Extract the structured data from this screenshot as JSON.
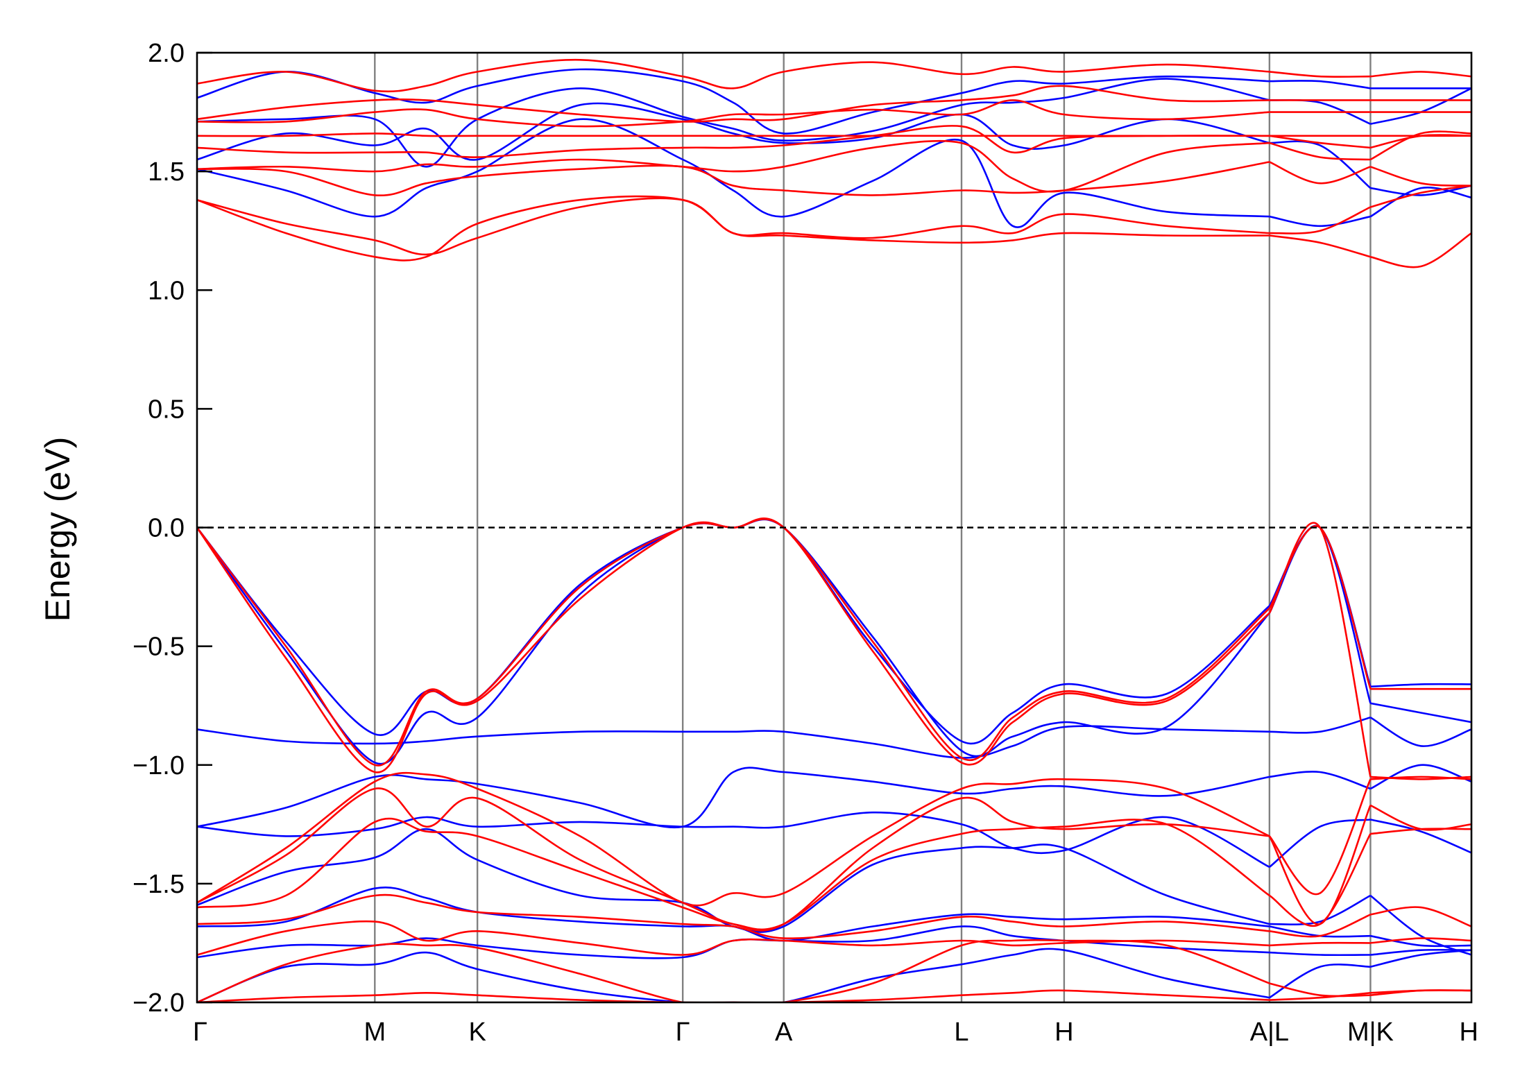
{
  "chart_data": {
    "type": "line",
    "title": "",
    "xlabel": "",
    "ylabel": "Energy (eV)",
    "ylim": [
      -2.0,
      2.0
    ],
    "yticks": [
      "2.0",
      "1.5",
      "1.0",
      "0.5",
      "0.0",
      "−0.5",
      "−1.0",
      "−1.5",
      "−2.0"
    ],
    "ytick_values": [
      2.0,
      1.5,
      1.0,
      0.5,
      0.0,
      -0.5,
      -1.0,
      -1.5,
      -2.0
    ],
    "grid": false,
    "legend": "none",
    "fermi_level": 0.0,
    "kpath": {
      "ticks": [
        {
          "label": "Γ",
          "x": 0.0
        },
        {
          "label": "M",
          "x": 1.0
        },
        {
          "label": "K",
          "x": 1.577
        },
        {
          "label": "Γ",
          "x": 2.732
        },
        {
          "label": "A",
          "x": 3.3
        },
        {
          "label": "L",
          "x": 4.3
        },
        {
          "label": "H",
          "x": 4.877
        },
        {
          "label": "A|L",
          "x": 6.032
        },
        {
          "label": "M|K",
          "x": 6.6
        },
        {
          "label": "H",
          "x": 7.168
        }
      ],
      "breaks": [
        6.032,
        6.6
      ],
      "xlim": [
        0.0,
        7.168
      ]
    },
    "colors": {
      "spin_up": "#0000ff",
      "spin_down": "#ff0000",
      "kpath_lines": "#808080",
      "fermi": "#000000"
    },
    "series": [
      {
        "spin": "up",
        "y": [
          1.51,
          1.42,
          1.31,
          1.43,
          1.5,
          1.72,
          1.55,
          1.42,
          1.31,
          1.46,
          1.63,
          1.27,
          1.41,
          1.33,
          1.31,
          1.27,
          1.31,
          1.43,
          1.39
        ]
      },
      {
        "spin": "up",
        "y": [
          1.55,
          1.66,
          1.61,
          1.68,
          1.55,
          1.78,
          1.72,
          1.66,
          1.62,
          1.64,
          1.74,
          1.61,
          1.61,
          1.72,
          1.62,
          1.61,
          1.43,
          1.4,
          1.44
        ]
      },
      {
        "spin": "up",
        "y": [
          1.71,
          1.72,
          1.72,
          1.52,
          1.72,
          1.85,
          1.73,
          1.68,
          1.63,
          1.67,
          1.78,
          1.79,
          1.81,
          1.89,
          1.8,
          1.79,
          1.7,
          1.75,
          1.85
        ]
      },
      {
        "spin": "up",
        "y": [
          1.81,
          1.92,
          1.83,
          1.79,
          1.86,
          1.93,
          1.88,
          1.79,
          1.66,
          1.75,
          1.83,
          1.88,
          1.87,
          1.9,
          1.88,
          1.88,
          1.85,
          1.85,
          1.85
        ]
      },
      {
        "spin": "up",
        "y": [
          0.0,
          -0.48,
          -0.87,
          -0.69,
          -0.72,
          -0.24,
          0.0,
          0.0,
          0.0,
          -0.5,
          -0.9,
          -0.78,
          -0.66,
          -0.7,
          -0.33,
          0.0,
          -0.67,
          -0.66,
          -0.66
        ]
      },
      {
        "spin": "up",
        "y": [
          0.0,
          -0.52,
          -0.99,
          -0.78,
          -0.8,
          -0.28,
          0.0,
          0.0,
          0.0,
          -0.46,
          -0.94,
          -0.88,
          -0.82,
          -0.84,
          -0.36,
          0.0,
          -0.74,
          -0.78,
          -0.82
        ]
      },
      {
        "spin": "up",
        "y": [
          -0.85,
          -0.9,
          -0.91,
          -0.9,
          -0.88,
          -0.86,
          -0.86,
          -0.86,
          -0.86,
          -0.91,
          -0.97,
          -0.92,
          -0.84,
          -0.85,
          -0.86,
          -0.86,
          -0.8,
          -0.92,
          -0.85
        ]
      },
      {
        "spin": "up",
        "y": [
          -1.26,
          -1.18,
          -1.05,
          -1.06,
          -1.08,
          -1.16,
          -1.26,
          -1.03,
          -1.03,
          -1.07,
          -1.12,
          -1.1,
          -1.09,
          -1.13,
          -1.05,
          -1.03,
          -1.1,
          -1.0,
          -1.07
        ]
      },
      {
        "spin": "up",
        "y": [
          -1.26,
          -1.3,
          -1.27,
          -1.22,
          -1.26,
          -1.24,
          -1.26,
          -1.26,
          -1.26,
          -1.2,
          -1.25,
          -1.35,
          -1.36,
          -1.22,
          -1.43,
          -1.26,
          -1.23,
          -1.28,
          -1.37
        ]
      },
      {
        "spin": "up",
        "y": [
          -1.59,
          -1.45,
          -1.39,
          -1.27,
          -1.4,
          -1.55,
          -1.58,
          -1.68,
          -1.68,
          -1.42,
          -1.35,
          -1.35,
          -1.35,
          -1.55,
          -1.67,
          -1.66,
          -1.55,
          -1.72,
          -1.8
        ]
      },
      {
        "spin": "up",
        "y": [
          -1.68,
          -1.66,
          -1.52,
          -1.56,
          -1.62,
          -1.66,
          -1.68,
          -1.68,
          -1.74,
          -1.68,
          -1.63,
          -1.64,
          -1.65,
          -1.64,
          -1.68,
          -1.72,
          -1.72,
          -1.76,
          -1.76
        ]
      },
      {
        "spin": "up",
        "y": [
          -1.81,
          -1.76,
          -1.76,
          -1.73,
          -1.76,
          -1.8,
          -1.81,
          -1.74,
          -1.74,
          -1.74,
          -1.68,
          -1.72,
          -1.74,
          -1.77,
          -1.79,
          -1.8,
          -1.8,
          -1.78,
          -1.78
        ]
      },
      {
        "spin": "up",
        "y": [
          -2.0,
          -1.85,
          -1.84,
          -1.79,
          -1.86,
          -1.95,
          -2.0,
          -2.0,
          -2.0,
          -1.9,
          -1.84,
          -1.8,
          -1.78,
          -1.9,
          -1.98,
          -1.85,
          -1.85,
          -1.8,
          -1.78
        ]
      },
      {
        "spin": "down",
        "y": [
          1.38,
          1.24,
          1.14,
          1.14,
          1.28,
          1.38,
          1.38,
          1.24,
          1.23,
          1.21,
          1.2,
          1.21,
          1.24,
          1.23,
          1.23,
          1.2,
          1.14,
          1.1,
          1.24
        ]
      },
      {
        "spin": "down",
        "y": [
          1.38,
          1.28,
          1.21,
          1.15,
          1.22,
          1.35,
          1.38,
          1.24,
          1.24,
          1.22,
          1.27,
          1.24,
          1.32,
          1.27,
          1.24,
          1.25,
          1.35,
          1.41,
          1.44
        ]
      },
      {
        "spin": "down",
        "y": [
          1.51,
          1.5,
          1.4,
          1.45,
          1.48,
          1.51,
          1.52,
          1.44,
          1.42,
          1.4,
          1.42,
          1.41,
          1.42,
          1.46,
          1.54,
          1.45,
          1.52,
          1.45,
          1.44
        ]
      },
      {
        "spin": "down",
        "y": [
          1.51,
          1.52,
          1.5,
          1.53,
          1.52,
          1.55,
          1.52,
          1.5,
          1.52,
          1.6,
          1.62,
          1.47,
          1.42,
          1.58,
          1.62,
          1.56,
          1.55,
          1.66,
          1.66
        ]
      },
      {
        "spin": "down",
        "y": [
          1.6,
          1.58,
          1.58,
          1.58,
          1.56,
          1.59,
          1.6,
          1.6,
          1.61,
          1.65,
          1.69,
          1.58,
          1.64,
          1.65,
          1.65,
          1.62,
          1.6,
          1.65,
          1.65
        ]
      },
      {
        "spin": "down",
        "y": [
          1.65,
          1.65,
          1.66,
          1.65,
          1.65,
          1.65,
          1.65,
          1.65,
          1.65,
          1.65,
          1.65,
          1.65,
          1.65,
          1.65,
          1.65,
          1.65,
          1.65,
          1.65,
          1.65
        ]
      },
      {
        "spin": "down",
        "y": [
          1.71,
          1.71,
          1.75,
          1.76,
          1.72,
          1.69,
          1.71,
          1.74,
          1.74,
          1.76,
          1.74,
          1.8,
          1.74,
          1.72,
          1.75,
          1.75,
          1.75,
          1.75,
          1.75
        ]
      },
      {
        "spin": "down",
        "y": [
          1.72,
          1.77,
          1.8,
          1.8,
          1.78,
          1.74,
          1.71,
          1.72,
          1.72,
          1.78,
          1.8,
          1.82,
          1.86,
          1.8,
          1.8,
          1.8,
          1.8,
          1.8,
          1.8
        ]
      },
      {
        "spin": "down",
        "y": [
          1.87,
          1.92,
          1.84,
          1.86,
          1.92,
          1.97,
          1.9,
          1.85,
          1.92,
          1.96,
          1.91,
          1.94,
          1.92,
          1.95,
          1.92,
          1.9,
          1.9,
          1.92,
          1.9
        ]
      },
      {
        "spin": "down",
        "y": [
          0.0,
          -0.5,
          -1.0,
          -0.69,
          -0.72,
          -0.25,
          0.0,
          0.0,
          0.0,
          -0.48,
          -0.97,
          -0.8,
          -0.69,
          -0.72,
          -0.34,
          0.0,
          -0.68,
          -0.68,
          -0.68
        ]
      },
      {
        "spin": "down",
        "y": [
          0.0,
          -0.55,
          -1.03,
          -0.7,
          -0.73,
          -0.3,
          0.0,
          0.0,
          0.0,
          -0.52,
          -0.99,
          -0.82,
          -0.7,
          -0.73,
          -0.36,
          0.0,
          -1.05,
          -1.06,
          -1.05
        ]
      },
      {
        "spin": "down",
        "y": [
          -1.58,
          -1.35,
          -1.07,
          -1.04,
          -1.1,
          -1.3,
          -1.58,
          -1.54,
          -1.54,
          -1.3,
          -1.1,
          -1.08,
          -1.06,
          -1.1,
          -1.3,
          -1.54,
          -1.06,
          -1.05,
          -1.06
        ]
      },
      {
        "spin": "down",
        "y": [
          -1.58,
          -1.38,
          -1.1,
          -1.26,
          -1.14,
          -1.4,
          -1.58,
          -1.67,
          -1.67,
          -1.35,
          -1.14,
          -1.24,
          -1.27,
          -1.25,
          -1.3,
          -1.67,
          -1.17,
          -1.27,
          -1.25
        ]
      },
      {
        "spin": "down",
        "y": [
          -1.6,
          -1.55,
          -1.24,
          -1.28,
          -1.3,
          -1.45,
          -1.6,
          -1.67,
          -1.67,
          -1.4,
          -1.29,
          -1.27,
          -1.26,
          -1.25,
          -1.55,
          -1.67,
          -1.29,
          -1.27,
          -1.27
        ]
      },
      {
        "spin": "down",
        "y": [
          -1.67,
          -1.65,
          -1.55,
          -1.58,
          -1.62,
          -1.64,
          -1.67,
          -1.68,
          -1.73,
          -1.7,
          -1.64,
          -1.66,
          -1.68,
          -1.66,
          -1.7,
          -1.72,
          -1.63,
          -1.6,
          -1.68
        ]
      },
      {
        "spin": "down",
        "y": [
          -1.8,
          -1.7,
          -1.66,
          -1.74,
          -1.7,
          -1.75,
          -1.8,
          -1.74,
          -1.74,
          -1.76,
          -1.74,
          -1.76,
          -1.75,
          -1.74,
          -1.76,
          -1.75,
          -1.75,
          -1.73,
          -1.74
        ]
      },
      {
        "spin": "down",
        "y": [
          -2.0,
          -1.84,
          -1.76,
          -1.76,
          -1.77,
          -1.88,
          -2.0,
          -2.0,
          -2.0,
          -1.92,
          -1.76,
          -1.74,
          -1.74,
          -1.76,
          -1.92,
          -1.97,
          -1.97,
          -1.95,
          -1.95
        ]
      },
      {
        "spin": "down",
        "y": [
          -2.0,
          -1.98,
          -1.97,
          -1.96,
          -1.97,
          -1.99,
          -2.0,
          -2.0,
          -2.0,
          -1.99,
          -1.97,
          -1.96,
          -1.95,
          -1.97,
          -1.99,
          -1.98,
          -1.96,
          -1.95,
          -1.95
        ]
      }
    ]
  }
}
